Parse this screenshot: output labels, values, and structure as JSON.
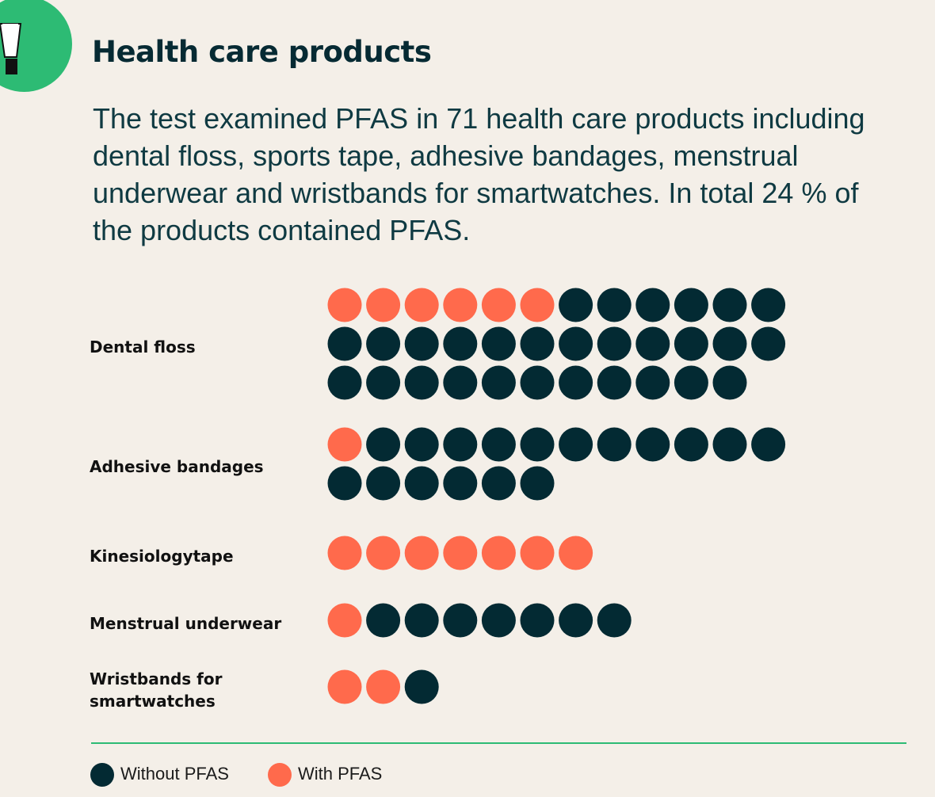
{
  "header": {
    "title": "Health care products",
    "intro": "The test examined PFAS in 71 health care products including dental floss, sports tape, adhesive bandages, menstrual underwear and wristbands for smartwatches. In total 24 % of the products contained PFAS."
  },
  "colors": {
    "with_pfas": "#ff6a4c",
    "without_pfas": "#032a33",
    "accent": "#2dbb74",
    "background": "#f4efe8"
  },
  "chart_data": {
    "type": "dot-matrix",
    "unit": "products",
    "categories": [
      "Dental floss",
      "Adhesive bandages",
      "Kinesiologytape",
      "Menstrual underwear",
      "Wristbands for smartwatches"
    ],
    "series": [
      {
        "name": "With PFAS",
        "values": [
          6,
          1,
          7,
          1,
          2
        ]
      },
      {
        "name": "Without PFAS",
        "values": [
          29,
          17,
          0,
          7,
          1
        ]
      }
    ],
    "totals": [
      35,
      18,
      7,
      8,
      3
    ],
    "legend": [
      "Without PFAS",
      "With PFAS"
    ],
    "legend_position": "bottom-left"
  }
}
